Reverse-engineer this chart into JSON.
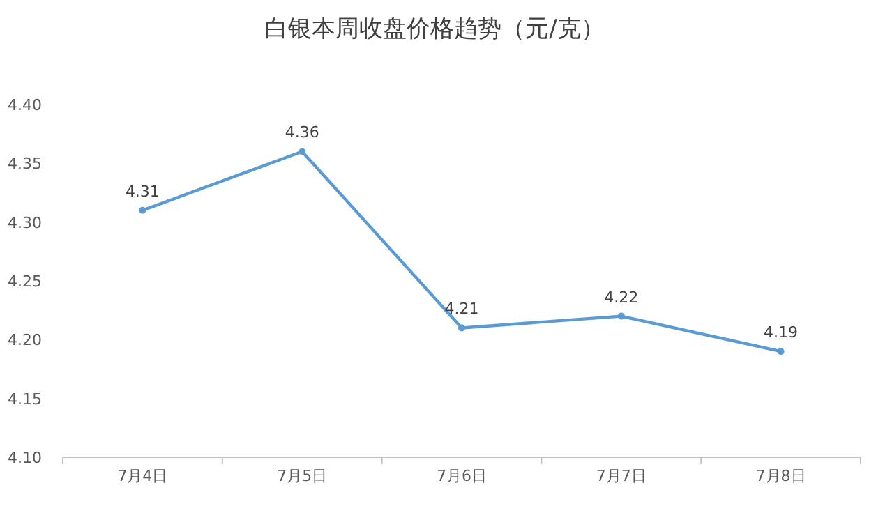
{
  "chart_data": {
    "type": "line",
    "title": "白银本周收盘价格趋势（元/克）",
    "categories": [
      "7月4日",
      "7月5日",
      "7月6日",
      "7月7日",
      "7月8日"
    ],
    "series": [
      {
        "color": "#5b9bd5",
        "values": [
          4.31,
          4.36,
          4.21,
          4.22,
          4.19
        ]
      }
    ],
    "ylim": [
      4.1,
      4.4
    ],
    "yticks": [
      {
        "value": 4.1,
        "label": "4.10"
      },
      {
        "value": 4.15,
        "label": "4.15"
      },
      {
        "value": 4.2,
        "label": "4.20"
      },
      {
        "value": 4.25,
        "label": "4.25"
      },
      {
        "value": 4.3,
        "label": "4.30"
      },
      {
        "value": 4.35,
        "label": "4.35"
      },
      {
        "value": 4.4,
        "label": "4.40"
      }
    ],
    "marker": "circle",
    "data_labels": true
  }
}
